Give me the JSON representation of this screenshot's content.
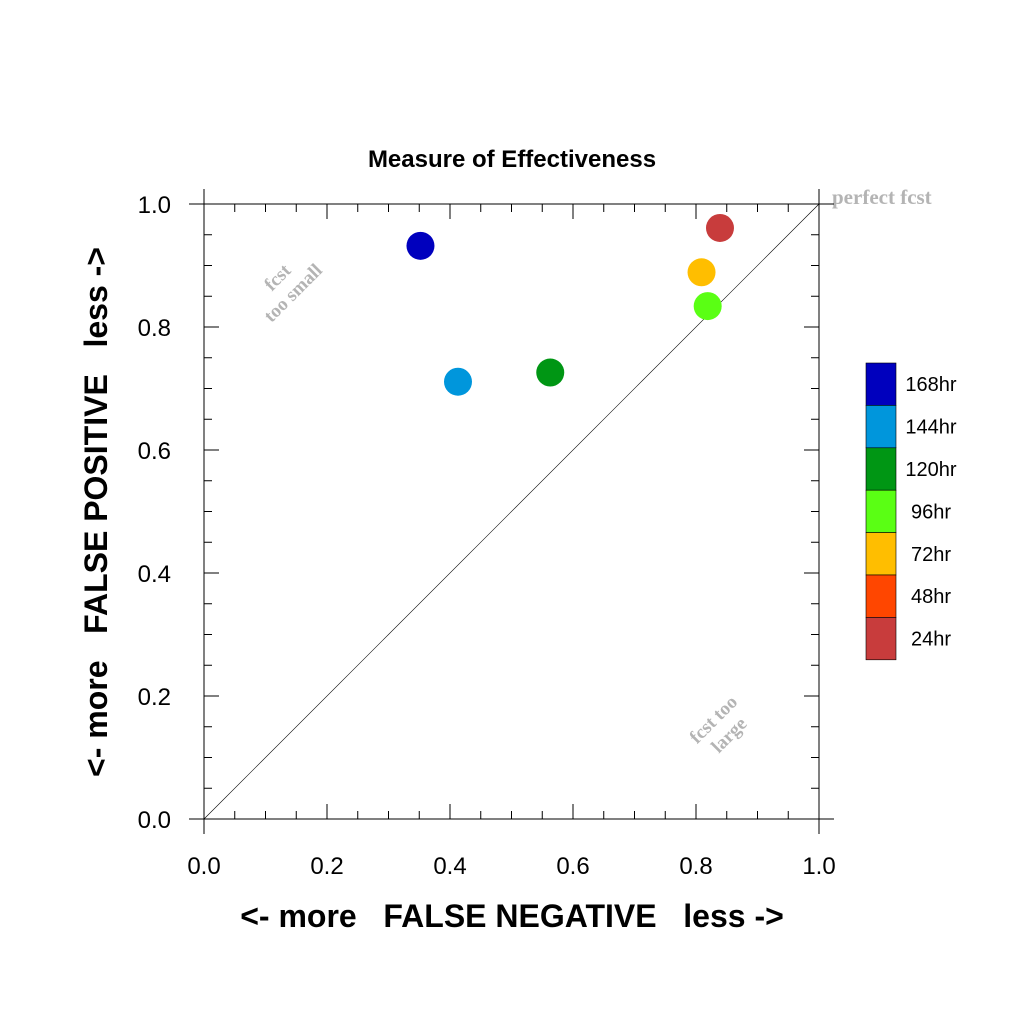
{
  "chart_data": {
    "type": "scatter",
    "title": "Measure of Effectiveness",
    "xlabel": "<- more   FALSE NEGATIVE   less ->",
    "ylabel": "<- more   FALSE POSITIVE   less ->",
    "xlim": [
      0.0,
      1.0
    ],
    "ylim": [
      0.0,
      1.0
    ],
    "x_ticks": [
      "0.0",
      "0.2",
      "0.4",
      "0.6",
      "0.8",
      "1.0"
    ],
    "y_ticks": [
      "0.0",
      "0.2",
      "0.4",
      "0.6",
      "0.8",
      "1.0"
    ],
    "grid": false,
    "diagonal_line": true,
    "annotations": {
      "perfect": "perfect fcst",
      "too_small_1": "fcst",
      "too_small_2": "too small",
      "too_large_1": "fcst too",
      "too_large_2": "large"
    },
    "series": [
      {
        "name": "168hr",
        "color": "#0000be",
        "x": 0.352,
        "y": 0.932
      },
      {
        "name": "144hr",
        "color": "#0096dc",
        "x": 0.413,
        "y": 0.711
      },
      {
        "name": "120hr",
        "color": "#009614",
        "x": 0.563,
        "y": 0.726
      },
      {
        "name": "96hr",
        "color": "#5aff14",
        "x": 0.819,
        "y": 0.834
      },
      {
        "name": "72hr",
        "color": "#ffbe00",
        "x": 0.809,
        "y": 0.889
      },
      {
        "name": "48hr",
        "color": "#ff4600",
        "x": null,
        "y": null
      },
      {
        "name": "24hr",
        "color": "#c83c3c",
        "x": 0.839,
        "y": 0.961
      }
    ],
    "legend": {
      "placement": "right",
      "entries": [
        "168hr",
        "144hr",
        "120hr",
        "96hr",
        "72hr",
        "48hr",
        "24hr"
      ]
    }
  }
}
